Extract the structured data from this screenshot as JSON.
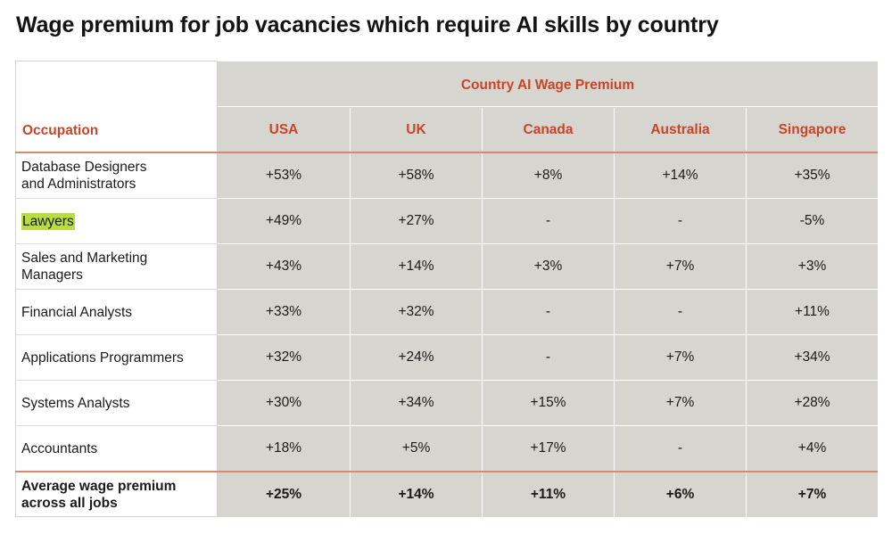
{
  "title": "Wage premium for job vacancies which require AI skills by country",
  "table": {
    "occupation_header": "Occupation",
    "group_header": "Country AI Wage Premium",
    "countries": [
      "USA",
      "UK",
      "Canada",
      "Australia",
      "Singapore"
    ],
    "rows": [
      {
        "occupation": "Database Designers\nand Administrators",
        "values": [
          "+53%",
          "+58%",
          "+8%",
          "+14%",
          "+35%"
        ]
      },
      {
        "occupation": "Lawyers",
        "highlight": true,
        "values": [
          "+49%",
          "+27%",
          "-",
          "-",
          "-5%"
        ]
      },
      {
        "occupation": "Sales and Marketing\nManagers",
        "values": [
          "+43%",
          "+14%",
          "+3%",
          "+7%",
          "+3%"
        ]
      },
      {
        "occupation": "Financial Analysts",
        "values": [
          "+33%",
          "+32%",
          "-",
          "-",
          "+11%"
        ]
      },
      {
        "occupation": "Applications Programmers",
        "values": [
          "+32%",
          "+24%",
          "-",
          "+7%",
          "+34%"
        ]
      },
      {
        "occupation": "Systems Analysts",
        "values": [
          "+30%",
          "+34%",
          "+15%",
          "+7%",
          "+28%"
        ]
      },
      {
        "occupation": "Accountants",
        "values": [
          "+18%",
          "+5%",
          "+17%",
          "-",
          "+4%"
        ]
      }
    ],
    "average": {
      "label": "Average wage premium\nacross all jobs",
      "values": [
        "+25%",
        "+14%",
        "+11%",
        "+6%",
        "+7%"
      ]
    }
  },
  "colors": {
    "header_text": "#c8452a",
    "cell_background": "#d6d5cf",
    "rule": "#d5896f",
    "highlight": "#b9dd3c"
  }
}
